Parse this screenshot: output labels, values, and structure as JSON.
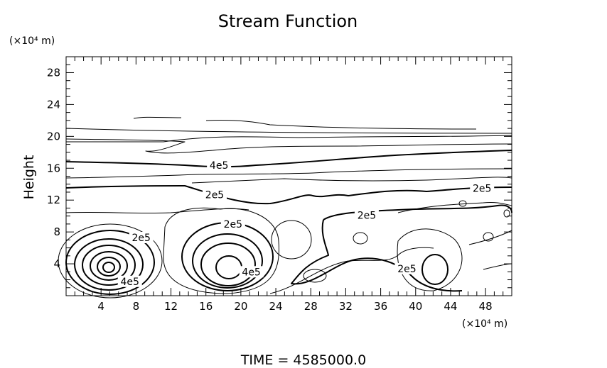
{
  "chart_data": {
    "type": "contour",
    "title": "Stream Function",
    "ylabel": "Height",
    "y_unit": "(×10⁴ m)",
    "x_unit": "(×10⁴ m)",
    "xlim": [
      0,
      51
    ],
    "ylim": [
      0,
      30
    ],
    "x_ticks": [
      4,
      8,
      12,
      16,
      20,
      24,
      28,
      32,
      36,
      40,
      44,
      48
    ],
    "y_ticks": [
      4,
      8,
      12,
      16,
      20,
      24,
      28
    ],
    "grid": false,
    "contour_labels": [
      {
        "text": "4e5",
        "x": 17.5,
        "y": 16.4
      },
      {
        "text": "2e5",
        "x": 17.0,
        "y": 12.7
      },
      {
        "text": "2e5",
        "x": 47.6,
        "y": 13.5
      },
      {
        "text": "2e5",
        "x": 34.4,
        "y": 10.1
      },
      {
        "text": "2e5",
        "x": 19.1,
        "y": 9.0
      },
      {
        "text": "2e5",
        "x": 8.6,
        "y": 7.3
      },
      {
        "text": "4e5",
        "x": 7.3,
        "y": 1.8
      },
      {
        "text": "4e5",
        "x": 21.2,
        "y": 3.0
      },
      {
        "text": "2e5",
        "x": 39.0,
        "y": 3.4
      }
    ],
    "footer": "TIME  =  4585000.0"
  }
}
